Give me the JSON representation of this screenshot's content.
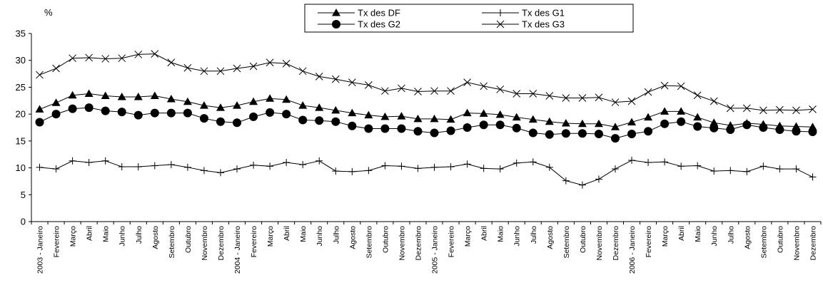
{
  "chart_data": {
    "type": "line",
    "title": "",
    "xlabel": "",
    "ylabel": "%",
    "ylim": [
      0,
      35
    ],
    "yticks": [
      0,
      5,
      10,
      15,
      20,
      25,
      30,
      35
    ],
    "grid": false,
    "legend_position": "top-center",
    "categories": [
      "2003 - Janeiro",
      "Fevereiro",
      "Março",
      "Abril",
      "Maio",
      "Junho",
      "Julho",
      "Agosto",
      "Setembro",
      "Outubro",
      "Novembro",
      "Dezembro",
      "2004 - Janeiro",
      "Fevereiro",
      "Março",
      "Abril",
      "Maio",
      "Junho",
      "Julho",
      "Agosto",
      "Setembro",
      "Outubro",
      "Novembro",
      "Dezembro",
      "2005 - Janeiro",
      "Fevereiro",
      "Março",
      "Abril",
      "Maio",
      "Junho",
      "Julho",
      "Agosto",
      "Setembro",
      "Outubro",
      "Novembro",
      "Dezembro",
      "2006 - Janeiro",
      "Fevereiro",
      "Março",
      "Abril",
      "Maio",
      "Junho",
      "Julho",
      "Agosto",
      "Setembro",
      "Outubro",
      "Novembro",
      "Dezembro"
    ],
    "series": [
      {
        "name": "Tx des DF",
        "marker": "triangle",
        "values": [
          20.9,
          22.1,
          23.5,
          23.8,
          23.4,
          23.2,
          23.2,
          23.4,
          22.8,
          22.3,
          21.6,
          21.2,
          21.6,
          22.3,
          22.9,
          22.7,
          21.6,
          21.2,
          20.7,
          20.2,
          19.8,
          19.5,
          19.6,
          19.1,
          19.1,
          19.0,
          20.2,
          20.1,
          19.9,
          19.4,
          19.0,
          18.6,
          18.3,
          18.2,
          18.2,
          17.6,
          18.5,
          19.4,
          20.5,
          20.5,
          19.4,
          18.4,
          17.9,
          18.3,
          18.1,
          17.8,
          17.7,
          17.6
        ]
      },
      {
        "name": "Tx des G1",
        "marker": "plus",
        "values": [
          10.1,
          9.8,
          11.3,
          11.0,
          11.3,
          10.2,
          10.2,
          10.4,
          10.6,
          10.1,
          9.5,
          9.1,
          9.8,
          10.5,
          10.3,
          11.0,
          10.6,
          11.3,
          9.4,
          9.3,
          9.5,
          10.4,
          10.3,
          9.9,
          10.1,
          10.2,
          10.7,
          9.9,
          9.8,
          10.9,
          11.1,
          10.1,
          7.6,
          6.8,
          7.9,
          9.8,
          11.4,
          11.0,
          11.1,
          10.3,
          10.4,
          9.4,
          9.5,
          9.3,
          10.3,
          9.8,
          9.8,
          8.3
        ]
      },
      {
        "name": "Tx des G2",
        "marker": "circle",
        "values": [
          18.5,
          20.0,
          21.0,
          21.2,
          20.6,
          20.4,
          19.8,
          20.2,
          20.2,
          20.2,
          19.2,
          18.6,
          18.4,
          19.5,
          20.3,
          20.0,
          18.9,
          18.8,
          18.6,
          17.8,
          17.3,
          17.3,
          17.3,
          16.8,
          16.5,
          16.9,
          17.5,
          18.0,
          18.0,
          17.4,
          16.5,
          16.2,
          16.4,
          16.4,
          16.3,
          15.5,
          16.3,
          16.8,
          18.2,
          18.6,
          17.7,
          17.4,
          17.1,
          18.0,
          17.5,
          17.1,
          16.8,
          16.7
        ]
      },
      {
        "name": "Tx des G3",
        "marker": "x",
        "values": [
          27.3,
          28.5,
          30.4,
          30.5,
          30.3,
          30.4,
          31.1,
          31.2,
          29.6,
          28.6,
          28.0,
          28.0,
          28.5,
          28.9,
          29.6,
          29.4,
          28.0,
          27.0,
          26.5,
          25.9,
          25.4,
          24.3,
          24.8,
          24.2,
          24.3,
          24.3,
          25.9,
          25.2,
          24.6,
          23.8,
          23.8,
          23.4,
          23.0,
          23.0,
          23.1,
          22.2,
          22.4,
          24.1,
          25.3,
          25.2,
          23.5,
          22.4,
          21.1,
          21.1,
          20.7,
          20.8,
          20.7,
          20.9
        ]
      }
    ]
  }
}
